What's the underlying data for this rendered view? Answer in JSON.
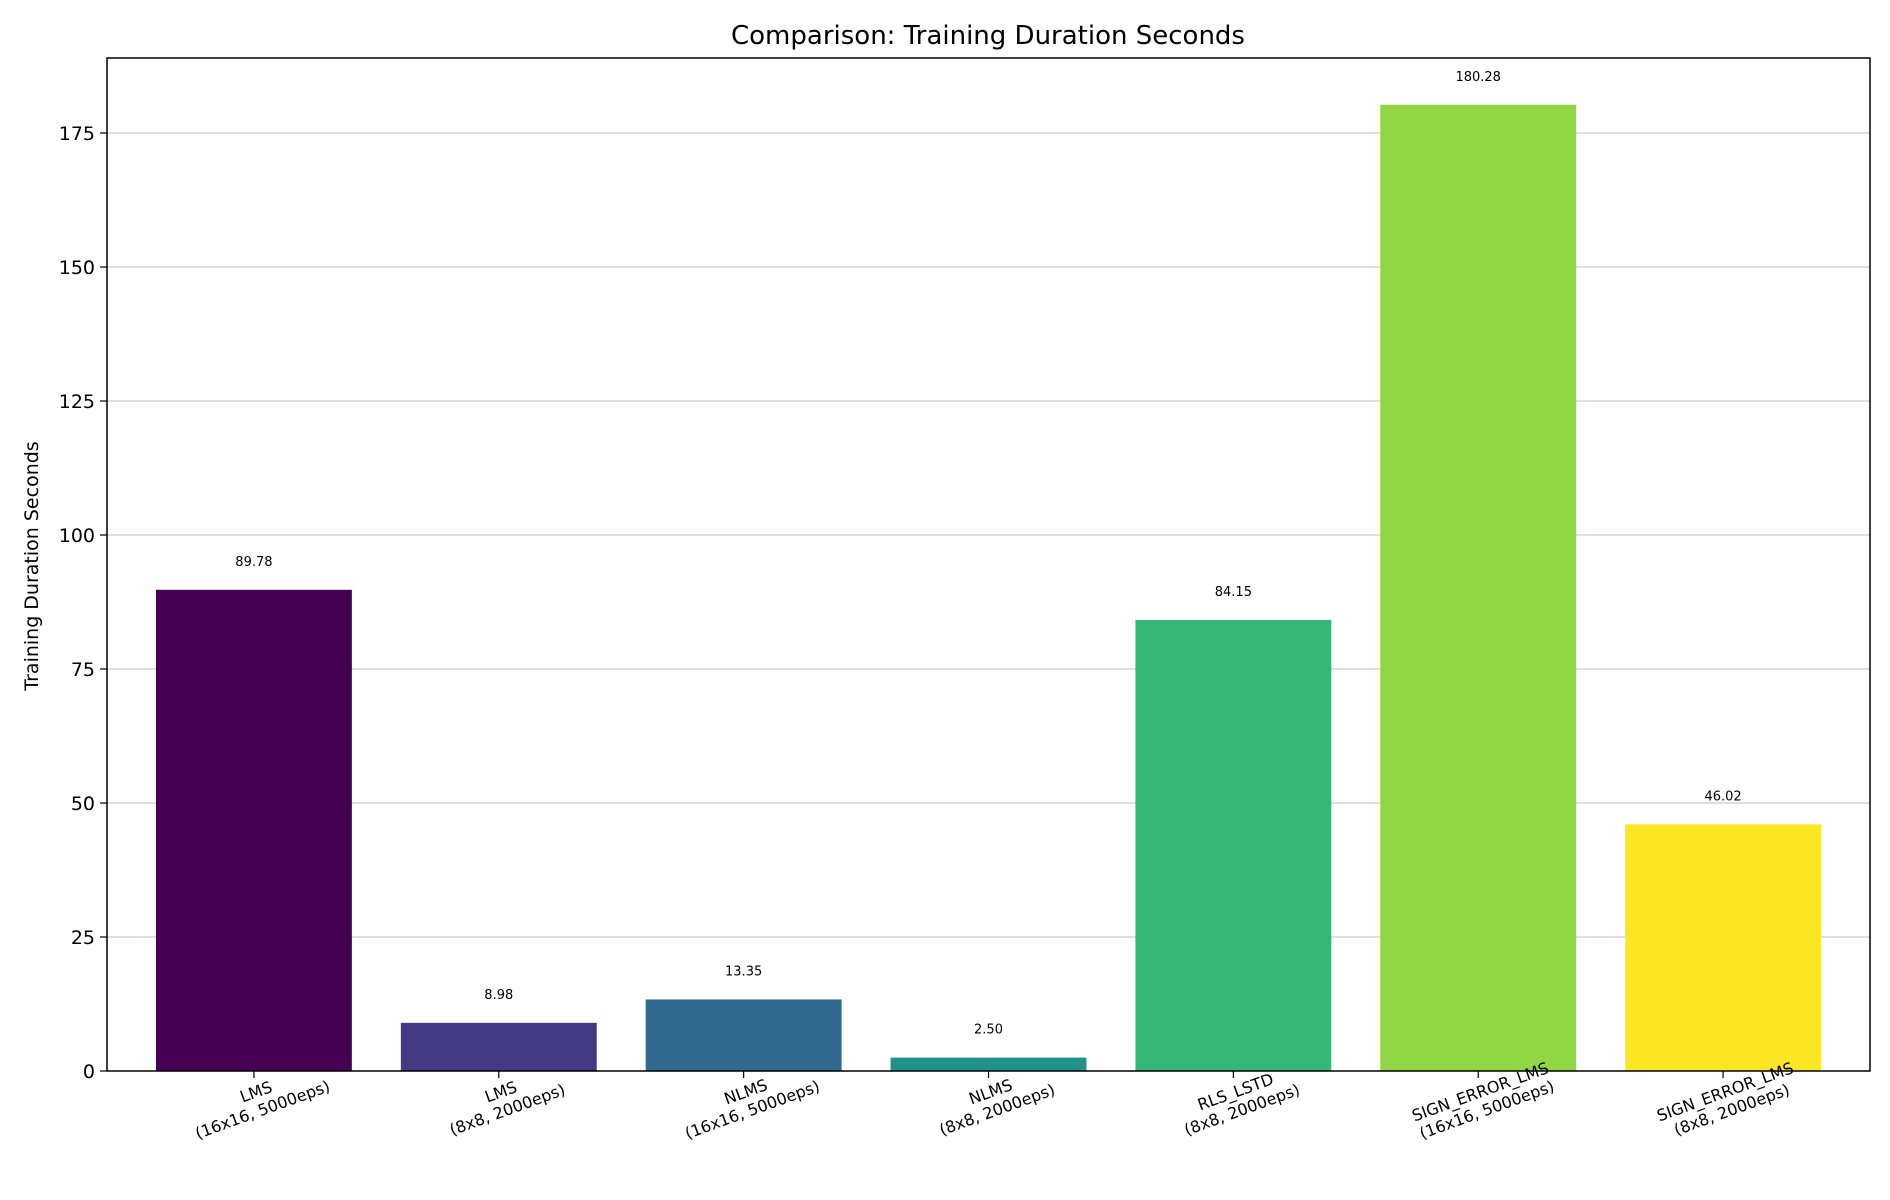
{
  "chart_data": {
    "type": "bar",
    "title": "Comparison: Training Duration Seconds",
    "xlabel": "",
    "ylabel": "Training Duration Seconds",
    "ylim": [
      0,
      189
    ],
    "yticks": [
      0,
      25,
      50,
      75,
      100,
      125,
      150,
      175
    ],
    "grid": "y",
    "categories": [
      [
        "LMS",
        "(16x16, 5000eps)"
      ],
      [
        "LMS",
        "(8x8, 2000eps)"
      ],
      [
        "NLMS",
        "(16x16, 5000eps)"
      ],
      [
        "NLMS",
        "(8x8, 2000eps)"
      ],
      [
        "RLS_LSTD",
        "(8x8, 2000eps)"
      ],
      [
        "SIGN_ERROR_LMS",
        "(16x16, 5000eps)"
      ],
      [
        "SIGN_ERROR_LMS",
        "(8x8, 2000eps)"
      ]
    ],
    "values": [
      89.78,
      8.98,
      13.35,
      2.5,
      84.15,
      180.28,
      46.02
    ],
    "value_labels": [
      "89.78",
      "8.98",
      "13.35",
      "2.50",
      "84.15",
      "180.28",
      "46.02"
    ],
    "colors": [
      "#440154",
      "#443983",
      "#31688e",
      "#21918c",
      "#35b779",
      "#90d743",
      "#fde725"
    ]
  }
}
